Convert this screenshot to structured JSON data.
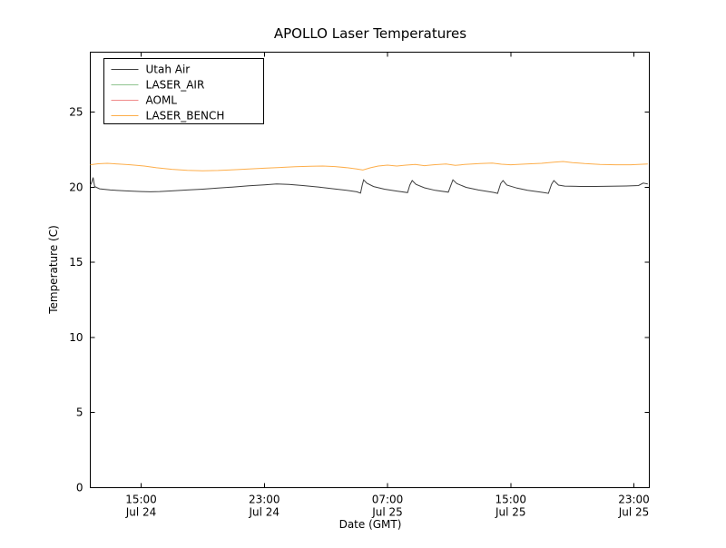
{
  "chart_data": {
    "type": "line",
    "title": "APOLLO Laser Temperatures",
    "xlabel": "Date (GMT)",
    "ylabel": "Temperature (C)",
    "x_unit": "hours since Jul 24 00:00 GMT",
    "xlim": [
      11.7,
      48.0
    ],
    "ylim": [
      0,
      29
    ],
    "grid": false,
    "yticks": [
      0,
      5,
      10,
      15,
      20,
      25
    ],
    "xticks": [
      {
        "value": 15,
        "time": "15:00",
        "date": "Jul 24"
      },
      {
        "value": 23,
        "time": "23:00",
        "date": "Jul 24"
      },
      {
        "value": 31,
        "time": "07:00",
        "date": "Jul 25"
      },
      {
        "value": 39,
        "time": "15:00",
        "date": "Jul 25"
      },
      {
        "value": 47,
        "time": "23:00",
        "date": "Jul 25"
      }
    ],
    "legend": {
      "position": "upper-left",
      "entries": [
        "Utah Air",
        "LASER_AIR",
        "AOML",
        "LASER_BENCH"
      ]
    },
    "series": [
      {
        "name": "Utah Air",
        "color": "#3d3d3d",
        "points": [
          [
            11.7,
            20.15
          ],
          [
            11.78,
            20.3
          ],
          [
            11.88,
            20.65
          ],
          [
            11.98,
            20.05
          ],
          [
            12.3,
            19.9
          ],
          [
            13.0,
            19.82
          ],
          [
            14.0,
            19.76
          ],
          [
            15.0,
            19.72
          ],
          [
            15.6,
            19.7
          ],
          [
            16.2,
            19.72
          ],
          [
            17.0,
            19.76
          ],
          [
            18.0,
            19.82
          ],
          [
            19.0,
            19.88
          ],
          [
            20.0,
            19.95
          ],
          [
            21.0,
            20.02
          ],
          [
            22.0,
            20.1
          ],
          [
            23.0,
            20.17
          ],
          [
            23.8,
            20.22
          ],
          [
            24.6,
            20.2
          ],
          [
            25.5,
            20.12
          ],
          [
            26.5,
            20.02
          ],
          [
            27.5,
            19.9
          ],
          [
            28.5,
            19.78
          ],
          [
            29.0,
            19.7
          ],
          [
            29.25,
            19.62
          ],
          [
            29.35,
            20.1
          ],
          [
            29.45,
            20.5
          ],
          [
            29.65,
            20.28
          ],
          [
            30.1,
            20.05
          ],
          [
            30.8,
            19.88
          ],
          [
            31.6,
            19.75
          ],
          [
            32.3,
            19.65
          ],
          [
            32.45,
            20.15
          ],
          [
            32.6,
            20.45
          ],
          [
            32.85,
            20.2
          ],
          [
            33.4,
            19.97
          ],
          [
            34.1,
            19.8
          ],
          [
            34.95,
            19.68
          ],
          [
            35.1,
            20.1
          ],
          [
            35.25,
            20.5
          ],
          [
            35.5,
            20.25
          ],
          [
            36.1,
            20.0
          ],
          [
            36.9,
            19.82
          ],
          [
            37.9,
            19.66
          ],
          [
            38.15,
            19.6
          ],
          [
            38.35,
            20.25
          ],
          [
            38.5,
            20.45
          ],
          [
            38.75,
            20.15
          ],
          [
            39.4,
            19.95
          ],
          [
            40.1,
            19.8
          ],
          [
            41.1,
            19.66
          ],
          [
            41.45,
            19.6
          ],
          [
            41.65,
            20.2
          ],
          [
            41.8,
            20.45
          ],
          [
            42.1,
            20.15
          ],
          [
            42.5,
            20.08
          ],
          [
            43.5,
            20.06
          ],
          [
            44.5,
            20.06
          ],
          [
            45.5,
            20.07
          ],
          [
            46.5,
            20.09
          ],
          [
            47.3,
            20.12
          ],
          [
            47.6,
            20.28
          ],
          [
            47.9,
            20.22
          ]
        ]
      },
      {
        "name": "LASER_AIR",
        "color": "#8fc48f",
        "points": []
      },
      {
        "name": "AOML",
        "color": "#f08a8a",
        "points": []
      },
      {
        "name": "LASER_BENCH",
        "color": "#fdae4b",
        "points": [
          [
            11.7,
            21.5
          ],
          [
            12.2,
            21.57
          ],
          [
            12.8,
            21.6
          ],
          [
            13.5,
            21.55
          ],
          [
            14.3,
            21.5
          ],
          [
            15.2,
            21.42
          ],
          [
            16.0,
            21.3
          ],
          [
            17.0,
            21.2
          ],
          [
            18.0,
            21.13
          ],
          [
            19.0,
            21.1
          ],
          [
            20.0,
            21.12
          ],
          [
            21.0,
            21.17
          ],
          [
            22.0,
            21.22
          ],
          [
            23.0,
            21.27
          ],
          [
            24.0,
            21.32
          ],
          [
            25.0,
            21.37
          ],
          [
            26.0,
            21.4
          ],
          [
            26.8,
            21.42
          ],
          [
            27.6,
            21.38
          ],
          [
            28.4,
            21.3
          ],
          [
            29.0,
            21.22
          ],
          [
            29.4,
            21.15
          ],
          [
            29.9,
            21.3
          ],
          [
            30.4,
            21.42
          ],
          [
            31.0,
            21.48
          ],
          [
            31.6,
            21.42
          ],
          [
            32.2,
            21.48
          ],
          [
            32.8,
            21.52
          ],
          [
            33.4,
            21.44
          ],
          [
            34.0,
            21.5
          ],
          [
            34.8,
            21.55
          ],
          [
            35.4,
            21.46
          ],
          [
            36.0,
            21.52
          ],
          [
            37.0,
            21.58
          ],
          [
            37.8,
            21.62
          ],
          [
            38.4,
            21.54
          ],
          [
            39.0,
            21.5
          ],
          [
            40.0,
            21.55
          ],
          [
            41.0,
            21.6
          ],
          [
            41.8,
            21.68
          ],
          [
            42.4,
            21.72
          ],
          [
            43.0,
            21.65
          ],
          [
            43.8,
            21.58
          ],
          [
            44.8,
            21.52
          ],
          [
            45.8,
            21.5
          ],
          [
            46.8,
            21.5
          ],
          [
            47.9,
            21.55
          ]
        ]
      }
    ]
  }
}
